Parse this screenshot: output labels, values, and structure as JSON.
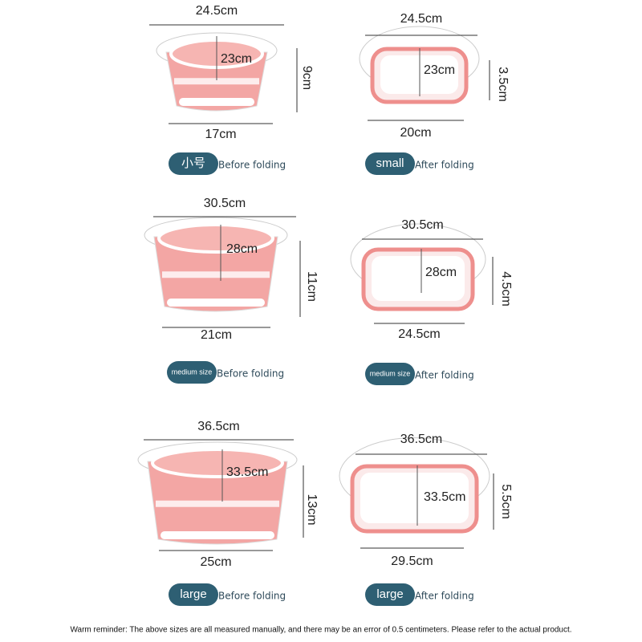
{
  "panels": [
    {
      "top": "24.5cm",
      "inner": "23cm",
      "height": "9cm",
      "bottom": "17cm",
      "badge": "小号",
      "caption": "Before folding"
    },
    {
      "top": "24.5cm",
      "inner": "23cm",
      "height": "3.5cm",
      "bottom": "20cm",
      "badge": "small",
      "caption": "After folding"
    },
    {
      "top": "30.5cm",
      "inner": "28cm",
      "height": "11cm",
      "bottom": "21cm",
      "badge": "medium size",
      "caption": "Before folding"
    },
    {
      "top": "30.5cm",
      "inner": "28cm",
      "height": "4.5cm",
      "bottom": "24.5cm",
      "badge": "medium size",
      "caption": "After folding"
    },
    {
      "top": "36.5cm",
      "inner": "33.5cm",
      "height": "13cm",
      "bottom": "25cm",
      "badge": "large",
      "caption": "Before folding"
    },
    {
      "top": "36.5cm",
      "inner": "33.5cm",
      "height": "5.5cm",
      "bottom": "29.5cm",
      "badge": "large",
      "caption": "After folding"
    }
  ],
  "note": "Warm reminder: The above sizes are all measured manually, and there may be an error of 0.5 centimeters. Please refer to the actual product."
}
